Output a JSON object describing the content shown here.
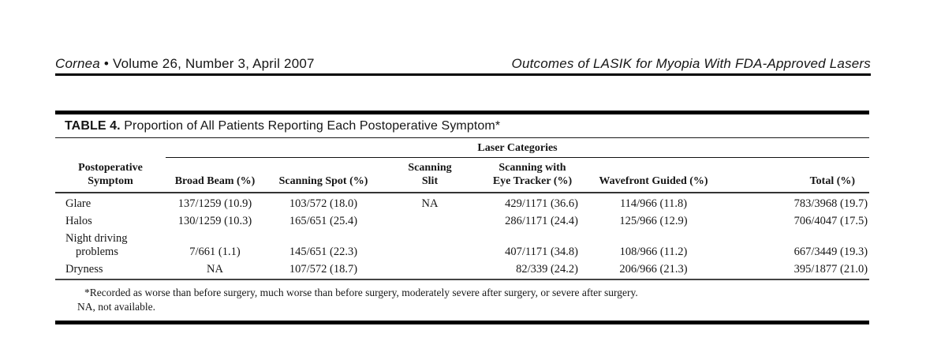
{
  "running_head": {
    "journal": "Cornea",
    "issue": "• Volume 26, Number 3, April 2007",
    "article_title": "Outcomes of LASIK for Myopia With FDA-Approved Lasers"
  },
  "table": {
    "label": "TABLE 4.",
    "title_rest": "Proportion of All Patients Reporting Each Postoperative Symptom*",
    "group_header": "Laser Categories",
    "columns": [
      {
        "id": "symptom",
        "lines": [
          "Postoperative",
          "Symptom"
        ]
      },
      {
        "id": "broad-beam",
        "lines": [
          "Broad Beam (%)"
        ]
      },
      {
        "id": "scanning-spot",
        "lines": [
          "Scanning Spot (%)"
        ]
      },
      {
        "id": "scanning-slit",
        "lines": [
          "Scanning",
          "Slit"
        ]
      },
      {
        "id": "eye-tracker",
        "lines": [
          "Scanning with",
          "Eye Tracker (%)"
        ]
      },
      {
        "id": "wavefront",
        "lines": [
          "Wavefront Guided (%)"
        ]
      },
      {
        "id": "total",
        "lines": [
          "Total (%)"
        ]
      }
    ],
    "rows": [
      {
        "symptom": "Glare",
        "symptom_line2": "",
        "cells": [
          "137/1259 (10.9)",
          "103/572 (18.0)",
          "NA",
          "429/1171 (36.6)",
          "114/966 (11.8)",
          "783/3968 (19.7)"
        ]
      },
      {
        "symptom": "Halos",
        "symptom_line2": "",
        "cells": [
          "130/1259 (10.3)",
          "165/651 (25.4)",
          "",
          "286/1171 (24.4)",
          "125/966 (12.9)",
          "706/4047 (17.5)"
        ]
      },
      {
        "symptom": "Night driving",
        "symptom_line2": "problems",
        "cells": [
          "7/661 (1.1)",
          "145/651 (22.3)",
          "",
          "407/1171 (34.8)",
          "108/966 (11.2)",
          "667/3449 (19.3)"
        ]
      },
      {
        "symptom": "Dryness",
        "symptom_line2": "",
        "cells": [
          "NA",
          "107/572 (18.7)",
          "",
          "82/339 (24.2)",
          "206/966 (21.3)",
          "395/1877 (21.0)"
        ]
      }
    ],
    "footnotes": [
      "*Recorded as worse than before surgery, much worse than before surgery, moderately severe after surgery, or severe after surgery.",
      "NA, not available."
    ]
  },
  "colors": {
    "ink": "#161616",
    "paper": "#ffffff",
    "rule": "#000000"
  }
}
